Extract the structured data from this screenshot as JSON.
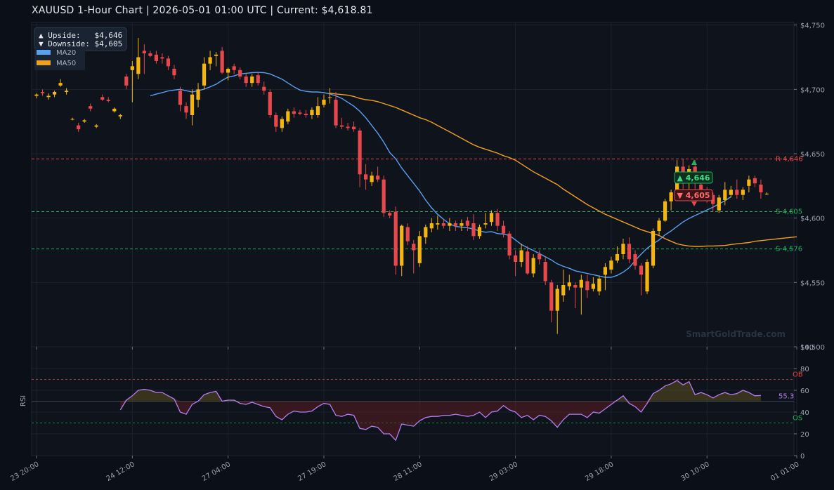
{
  "title": "XAUUSD  1-Hour Chart  |  2026-05-01 01:00 UTC  |  Current: $4,618.81",
  "watermark": "SmartGoldTrade.com",
  "colors": {
    "background": "#0b0f17",
    "bull": "#f5b50f",
    "bear": "#e8474c",
    "ma20": "#5aa0f0",
    "ma50": "#f0a020",
    "resistance": "#e8474c",
    "support": "#22b35a",
    "rsi": "#b77cf2"
  },
  "info_box": {
    "upside": "▲ Upside:   $4,646",
    "downside": "▼ Downside: $4,605"
  },
  "legend": [
    {
      "name": "MA20",
      "color": "#5aa0f0"
    },
    {
      "name": "MA50",
      "color": "#f0a020"
    }
  ],
  "badges": {
    "up": "▲ 4,646",
    "down": "▼ 4,605"
  },
  "chart_data": [
    {
      "type": "candlestick",
      "ylim": [
        4500,
        4752
      ],
      "yticks": [
        4500,
        4550,
        4600,
        4650,
        4700,
        4750
      ],
      "ytick_labels": [
        "$4,500",
        "$4,550",
        "$4,600",
        "$4,650",
        "$4,700",
        "$4,750"
      ],
      "xticks": [
        {
          "i": 0,
          "label": "23 20:00"
        },
        {
          "i": 16,
          "label": "24 12:00"
        },
        {
          "i": 32,
          "label": "27 04:00"
        },
        {
          "i": 48,
          "label": "27 19:00"
        },
        {
          "i": 64,
          "label": "28 11:00"
        },
        {
          "i": 80,
          "label": "29 03:00"
        },
        {
          "i": 96,
          "label": "29 18:00"
        },
        {
          "i": 112,
          "label": "30 10:00"
        },
        {
          "i": 127,
          "label": "01 01:00"
        }
      ],
      "levels": [
        {
          "kind": "resistance",
          "label": "R 4,646",
          "value": 4646
        },
        {
          "kind": "support",
          "label": "S 4,605",
          "value": 4605
        },
        {
          "kind": "support",
          "label": "S 4,576",
          "value": 4576
        }
      ],
      "candles": [
        [
          4695,
          4697,
          4693,
          4696
        ],
        [
          4698,
          4700,
          4695,
          4697
        ],
        [
          4694,
          4697,
          4692,
          4695
        ],
        [
          4696,
          4699,
          4694,
          4698
        ],
        [
          4703,
          4708,
          4702,
          4705
        ],
        [
          4698,
          4701,
          4696,
          4699
        ],
        [
          4677,
          4678,
          4676,
          4677
        ],
        [
          4672,
          4674,
          4667,
          4669
        ],
        [
          4675,
          4677,
          4674,
          4676
        ],
        [
          4687,
          4689,
          4683,
          4685
        ],
        [
          4671,
          4673,
          4670,
          4672
        ],
        [
          4694,
          4696,
          4691,
          4692
        ],
        [
          4692,
          4694,
          4690,
          4691
        ],
        [
          4683,
          4686,
          4682,
          4685
        ],
        [
          4679,
          4681,
          4677,
          4680
        ],
        [
          4710,
          4712,
          4700,
          4703
        ],
        [
          4715,
          4722,
          4690,
          4718
        ],
        [
          4712,
          4740,
          4708,
          4725
        ],
        [
          4730,
          4735,
          4712,
          4728
        ],
        [
          4728,
          4730,
          4725,
          4726
        ],
        [
          4727,
          4730,
          4720,
          4722
        ],
        [
          4725,
          4728,
          4720,
          4724
        ],
        [
          4724,
          4726,
          4715,
          4718
        ],
        [
          4716,
          4719,
          4708,
          4711
        ],
        [
          4699,
          4702,
          4683,
          4688
        ],
        [
          4687,
          4690,
          4677,
          4682
        ],
        [
          4680,
          4700,
          4672,
          4696
        ],
        [
          4692,
          4705,
          4686,
          4700
        ],
        [
          4703,
          4725,
          4700,
          4720
        ],
        [
          4720,
          4730,
          4715,
          4725
        ],
        [
          4726,
          4729,
          4718,
          4727
        ],
        [
          4730,
          4733,
          4712,
          4713
        ],
        [
          4713,
          4717,
          4707,
          4716
        ],
        [
          4718,
          4720,
          4712,
          4715
        ],
        [
          4715,
          4717,
          4708,
          4710
        ],
        [
          4710,
          4712,
          4702,
          4705
        ],
        [
          4705,
          4712,
          4702,
          4710
        ],
        [
          4711,
          4713,
          4703,
          4705
        ],
        [
          4702,
          4706,
          4696,
          4699
        ],
        [
          4698,
          4700,
          4678,
          4680
        ],
        [
          4680,
          4682,
          4667,
          4671
        ],
        [
          4670,
          4679,
          4667,
          4677
        ],
        [
          4675,
          4685,
          4673,
          4683
        ],
        [
          4683,
          4686,
          4678,
          4681
        ],
        [
          4682,
          4684,
          4680,
          4681
        ],
        [
          4681,
          4684,
          4678,
          4680
        ],
        [
          4680,
          4686,
          4677,
          4684
        ],
        [
          4680,
          4694,
          4678,
          4687
        ],
        [
          4688,
          4696,
          4686,
          4692
        ],
        [
          4694,
          4701,
          4689,
          4694
        ],
        [
          4692,
          4698,
          4670,
          4672
        ],
        [
          4672,
          4678,
          4669,
          4671
        ],
        [
          4671,
          4674,
          4668,
          4670
        ],
        [
          4671,
          4675,
          4667,
          4669
        ],
        [
          4668,
          4670,
          4624,
          4634
        ],
        [
          4634,
          4642,
          4622,
          4630
        ],
        [
          4628,
          4636,
          4625,
          4633
        ],
        [
          4633,
          4640,
          4628,
          4630
        ],
        [
          4630,
          4633,
          4601,
          4604
        ],
        [
          4604,
          4606,
          4600,
          4602
        ],
        [
          4605,
          4609,
          4556,
          4563
        ],
        [
          4563,
          4595,
          4555,
          4594
        ],
        [
          4593,
          4596,
          4579,
          4582
        ],
        [
          4580,
          4583,
          4557,
          4575
        ],
        [
          4565,
          4590,
          4562,
          4586
        ],
        [
          4585,
          4595,
          4580,
          4593
        ],
        [
          4592,
          4600,
          4589,
          4596
        ],
        [
          4595,
          4602,
          4591,
          4596
        ],
        [
          4596,
          4599,
          4592,
          4594
        ],
        [
          4594,
          4600,
          4590,
          4596
        ],
        [
          4596,
          4598,
          4590,
          4594
        ],
        [
          4594,
          4599,
          4590,
          4596
        ],
        [
          4598,
          4601,
          4590,
          4594
        ],
        [
          4596,
          4603,
          4583,
          4586
        ],
        [
          4586,
          4595,
          4584,
          4593
        ],
        [
          4595,
          4604,
          4592,
          4596
        ],
        [
          4597,
          4606,
          4594,
          4604
        ],
        [
          4604,
          4607,
          4590,
          4594
        ],
        [
          4594,
          4598,
          4585,
          4588
        ],
        [
          4588,
          4590,
          4568,
          4571
        ],
        [
          4571,
          4575,
          4555,
          4566
        ],
        [
          4566,
          4580,
          4562,
          4575
        ],
        [
          4574,
          4578,
          4556,
          4557
        ],
        [
          4557,
          4572,
          4554,
          4569
        ],
        [
          4572,
          4575,
          4564,
          4568
        ],
        [
          4566,
          4570,
          4548,
          4551
        ],
        [
          4550,
          4552,
          4519,
          4528
        ],
        [
          4528,
          4548,
          4510,
          4545
        ],
        [
          4540,
          4560,
          4535,
          4548
        ],
        [
          4547,
          4556,
          4544,
          4550
        ],
        [
          4548,
          4550,
          4530,
          4546
        ],
        [
          4546,
          4556,
          4525,
          4552
        ],
        [
          4551,
          4556,
          4538,
          4544
        ],
        [
          4545,
          4554,
          4543,
          4549
        ],
        [
          4543,
          4555,
          4540,
          4553
        ],
        [
          4556,
          4565,
          4544,
          4562
        ],
        [
          4560,
          4570,
          4557,
          4567
        ],
        [
          4567,
          4578,
          4565,
          4572
        ],
        [
          4572,
          4584,
          4568,
          4580
        ],
        [
          4580,
          4585,
          4565,
          4568
        ],
        [
          4572,
          4575,
          4560,
          4563
        ],
        [
          4563,
          4565,
          4540,
          4556
        ],
        [
          4543,
          4568,
          4541,
          4566
        ],
        [
          4563,
          4592,
          4561,
          4590
        ],
        [
          4590,
          4600,
          4587,
          4598
        ],
        [
          4598,
          4615,
          4597,
          4613
        ],
        [
          4613,
          4622,
          4606,
          4620
        ],
        [
          4620,
          4645,
          4617,
          4640
        ],
        [
          4640,
          4646,
          4615,
          4634
        ],
        [
          4636,
          4641,
          4620,
          4638
        ],
        [
          4640,
          4645,
          4617,
          4628
        ],
        [
          4626,
          4630,
          4616,
          4622
        ],
        [
          4620,
          4624,
          4612,
          4616
        ],
        [
          4618,
          4620,
          4605,
          4611
        ],
        [
          4606,
          4618,
          4604,
          4616
        ],
        [
          4614,
          4628,
          4610,
          4622
        ],
        [
          4618,
          4625,
          4616,
          4622
        ],
        [
          4622,
          4630,
          4615,
          4618
        ],
        [
          4618,
          4624,
          4614,
          4622
        ],
        [
          4625,
          4633,
          4620,
          4630
        ],
        [
          4631,
          4633,
          4624,
          4627
        ],
        [
          4626,
          4630,
          4615,
          4620
        ],
        [
          4619,
          4620,
          4618,
          4619
        ]
      ],
      "ma20_start": 19,
      "ma20": [
        4695,
        4696.3,
        4697.5,
        4698.8,
        4699.5,
        4700,
        4699,
        4698,
        4699,
        4700.2,
        4702,
        4704,
        4707,
        4709.5,
        4710.5,
        4712,
        4712.5,
        4713,
        4713.2,
        4713,
        4712,
        4710,
        4708,
        4705,
        4702,
        4699.5,
        4698.5,
        4698,
        4698,
        4697.5,
        4696.5,
        4695,
        4693,
        4690,
        4687,
        4683,
        4678,
        4672,
        4666,
        4659,
        4651,
        4646,
        4639,
        4633,
        4627,
        4621,
        4614,
        4608,
        4603,
        4599,
        4595.5,
        4593.5,
        4593,
        4592.5,
        4591.5,
        4590,
        4589,
        4589.5,
        4588,
        4587.5,
        4586.5,
        4583,
        4579.5,
        4577,
        4574.8,
        4572.5,
        4570,
        4567.5,
        4564.5,
        4562.5,
        4561,
        4559,
        4558,
        4557,
        4556,
        4555,
        4554,
        4554,
        4555.5,
        4558,
        4561.5,
        4567,
        4572,
        4576.5,
        4580,
        4583,
        4587,
        4590,
        4593.5,
        4597,
        4599.7,
        4602,
        4604,
        4606.3,
        4608.5,
        4611,
        4613.5,
        4616.5
      ],
      "ma50_start": 49,
      "ma50": [
        4697,
        4696.5,
        4696,
        4695.5,
        4694.5,
        4693,
        4692,
        4691.5,
        4690.5,
        4689,
        4687.5,
        4686,
        4684,
        4682,
        4680,
        4678,
        4676.5,
        4674.5,
        4672,
        4669.5,
        4667,
        4664.5,
        4662,
        4659.5,
        4657,
        4655,
        4653.5,
        4652,
        4650.5,
        4648.5,
        4647,
        4645,
        4642,
        4639,
        4636,
        4633.5,
        4631,
        4628.5,
        4626,
        4622.5,
        4619.5,
        4616.5,
        4613.5,
        4610.5,
        4608,
        4605.5,
        4603,
        4601,
        4599,
        4597,
        4595,
        4593,
        4591,
        4589.5,
        4588,
        4586.5,
        4584,
        4582,
        4580,
        4579,
        4578.3,
        4578,
        4578,
        4578.3,
        4578.3,
        4578.5,
        4578.7,
        4579.5,
        4580,
        4580.5,
        4581,
        4582,
        4582.5,
        4583,
        4583.5,
        4584,
        4584.5,
        4585,
        4585.5
      ]
    },
    {
      "type": "line",
      "ylabel": "RSI",
      "ylim": [
        0,
        100
      ],
      "yticks": [
        0,
        20,
        40,
        60,
        80,
        100
      ],
      "ytick_labels": [
        "0",
        "20",
        "40",
        "60",
        "80",
        "100"
      ],
      "overbought": 70,
      "oversold": 30,
      "midline": 50,
      "overbought_label": "OB",
      "oversold_label": "OS",
      "last_label": "55.3",
      "start_index": 14,
      "values": [
        42,
        51,
        55,
        60,
        61,
        60,
        58,
        58,
        55,
        52,
        40,
        38,
        47,
        50,
        56,
        58,
        59,
        50,
        51,
        51,
        48,
        47,
        49,
        47,
        45,
        44,
        36,
        33,
        38,
        41,
        40,
        40,
        41,
        45,
        48,
        47,
        37,
        36,
        38,
        37,
        25,
        24,
        27,
        26,
        20,
        20,
        14,
        29,
        28,
        27,
        32,
        35,
        36,
        36,
        37,
        37,
        38,
        37,
        36,
        37,
        40,
        35,
        40,
        41,
        46,
        42,
        40,
        35,
        37,
        33,
        37,
        36,
        32,
        26,
        33,
        38,
        38,
        38,
        35,
        40,
        39,
        43,
        47,
        51,
        55,
        48,
        45,
        40,
        48,
        57,
        60,
        64,
        66,
        69,
        65,
        68,
        56,
        58,
        56,
        53,
        56,
        58,
        56,
        57,
        60,
        58,
        55,
        55.3
      ]
    }
  ]
}
